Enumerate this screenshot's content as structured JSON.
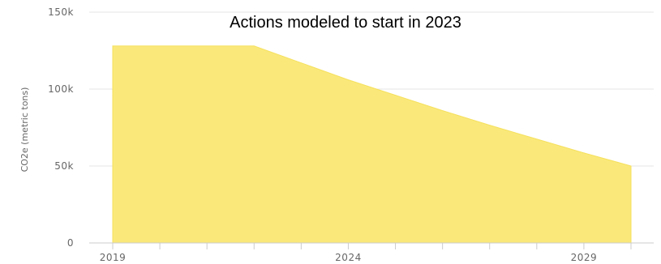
{
  "chart_data": {
    "type": "area",
    "title": "",
    "subtitle": "Actions modeled to start in 2023",
    "xlabel": "",
    "ylabel": "CO2e (metric tons)",
    "x_tick_labels": [
      "2019",
      "2024",
      "2029"
    ],
    "y_tick_labels": [
      "0",
      "50k",
      "100k",
      "150k"
    ],
    "y_ticks": [
      0,
      50000,
      100000,
      150000
    ],
    "xlim": [
      2019,
      2030
    ],
    "ylim": [
      0,
      150000
    ],
    "x": [
      2019,
      2020,
      2021,
      2022,
      2023,
      2024,
      2025,
      2026,
      2027,
      2028,
      2029,
      2030
    ],
    "series": [
      {
        "values": [
          128000,
          128000,
          128000,
          128000,
          117000,
          106000,
          96000,
          86000,
          76500,
          67500,
          58500,
          50000
        ]
      }
    ],
    "grid": true,
    "legend": "none",
    "colors": {
      "area_fill": "#fae97a",
      "area_edge": "#f5e05e",
      "grid": "#e6e6e6",
      "axis": "#cccccc",
      "tick_text": "#666666",
      "subtitle_text": "#000000"
    }
  }
}
